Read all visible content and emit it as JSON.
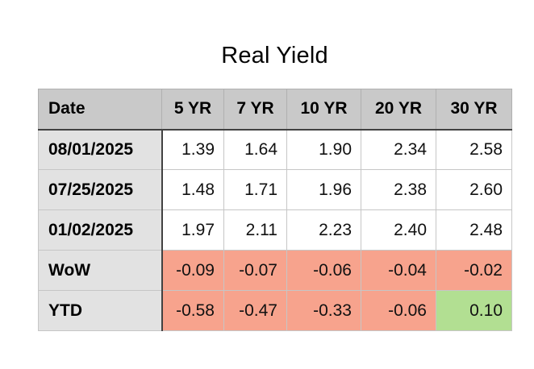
{
  "title": "Real Yield",
  "table": {
    "columns": [
      "Date",
      "5 YR",
      "7 YR",
      "10 YR",
      "20 YR",
      "30 YR"
    ],
    "rows": [
      {
        "label": "08/01/2025",
        "values": [
          "1.39",
          "1.64",
          "1.90",
          "2.34",
          "2.58"
        ]
      },
      {
        "label": "07/25/2025",
        "values": [
          "1.48",
          "1.71",
          "1.96",
          "2.38",
          "2.60"
        ]
      },
      {
        "label": "01/02/2025",
        "values": [
          "1.97",
          "2.11",
          "2.23",
          "2.40",
          "2.48"
        ]
      },
      {
        "label": "WoW",
        "values": [
          "-0.09",
          "-0.07",
          "-0.06",
          "-0.04",
          "-0.02"
        ]
      },
      {
        "label": "YTD",
        "values": [
          "-0.58",
          "-0.47",
          "-0.33",
          "-0.06",
          "0.10"
        ]
      }
    ],
    "colors": {
      "header_bg": "#c9c9c9",
      "row_label_bg": "#e2e2e2",
      "negative_cell_bg": "#f7a38d",
      "positive_cell_bg": "#b2df92",
      "header_divider": "#424242",
      "outer_border": "#8c8c8c",
      "grid_line": "#c6c6c6"
    }
  },
  "chart_data": {
    "type": "table",
    "title": "Real Yield",
    "columns": [
      "Date",
      "5 YR",
      "7 YR",
      "10 YR",
      "20 YR",
      "30 YR"
    ],
    "rows": [
      [
        "08/01/2025",
        1.39,
        1.64,
        1.9,
        2.34,
        2.58
      ],
      [
        "07/25/2025",
        1.48,
        1.71,
        1.96,
        2.38,
        2.6
      ],
      [
        "01/02/2025",
        1.97,
        2.11,
        2.23,
        2.4,
        2.48
      ],
      [
        "WoW",
        -0.09,
        -0.07,
        -0.06,
        -0.04,
        -0.02
      ],
      [
        "YTD",
        -0.58,
        -0.47,
        -0.33,
        -0.06,
        0.1
      ]
    ],
    "cell_highlights": {
      "WoW": [
        "negative",
        "negative",
        "negative",
        "negative",
        "negative"
      ],
      "YTD": [
        "negative",
        "negative",
        "negative",
        "negative",
        "positive"
      ]
    },
    "notes": "Negative change cells shaded salmon, positive change cell shaded green"
  }
}
